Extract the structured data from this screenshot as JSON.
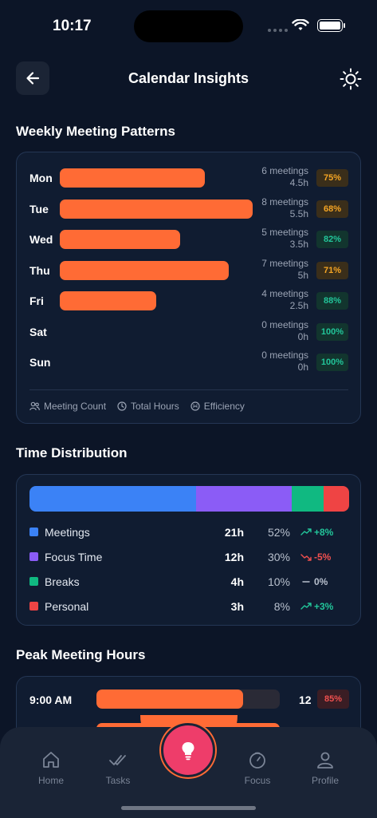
{
  "status": {
    "time": "10:17"
  },
  "header": {
    "title": "Calendar Insights"
  },
  "weekly": {
    "title": "Weekly Meeting Patterns",
    "days": [
      {
        "day": "Mon",
        "meetings": "6 meetings",
        "hours": "4.5h",
        "efficiency": "75%",
        "bar_fraction": 0.75,
        "tone": "amber"
      },
      {
        "day": "Tue",
        "meetings": "8 meetings",
        "hours": "5.5h",
        "efficiency": "68%",
        "bar_fraction": 1.0,
        "tone": "amber"
      },
      {
        "day": "Wed",
        "meetings": "5 meetings",
        "hours": "3.5h",
        "efficiency": "82%",
        "bar_fraction": 0.625,
        "tone": "green"
      },
      {
        "day": "Thu",
        "meetings": "7 meetings",
        "hours": "5h",
        "efficiency": "71%",
        "bar_fraction": 0.875,
        "tone": "amber"
      },
      {
        "day": "Fri",
        "meetings": "4 meetings",
        "hours": "2.5h",
        "efficiency": "88%",
        "bar_fraction": 0.5,
        "tone": "green"
      },
      {
        "day": "Sat",
        "meetings": "0 meetings",
        "hours": "0h",
        "efficiency": "100%",
        "bar_fraction": 0,
        "tone": "green"
      },
      {
        "day": "Sun",
        "meetings": "0 meetings",
        "hours": "0h",
        "efficiency": "100%",
        "bar_fraction": 0,
        "tone": "green"
      }
    ],
    "legend": {
      "count": "Meeting Count",
      "hours": "Total Hours",
      "efficiency": "Efficiency"
    }
  },
  "distribution": {
    "title": "Time Distribution",
    "items": [
      {
        "name": "Meetings",
        "hours": "21h",
        "percent": "52%",
        "share": 52,
        "trend": "+8%",
        "trend_dir": "up",
        "color": "#3b82f6"
      },
      {
        "name": "Focus Time",
        "hours": "12h",
        "percent": "30%",
        "share": 30,
        "trend": "-5%",
        "trend_dir": "down",
        "color": "#8b5cf6"
      },
      {
        "name": "Breaks",
        "hours": "4h",
        "percent": "10%",
        "share": 10,
        "trend": "0%",
        "trend_dir": "flat",
        "color": "#10b981"
      },
      {
        "name": "Personal",
        "hours": "3h",
        "percent": "8%",
        "share": 8,
        "trend": "+3%",
        "trend_dir": "up",
        "color": "#ef4444"
      }
    ]
  },
  "peak": {
    "title": "Peak Meeting Hours",
    "rows": [
      {
        "time": "9:00 AM",
        "count": "12",
        "percent": "85%",
        "fill": 0.8
      }
    ]
  },
  "tabs": {
    "home": "Home",
    "tasks": "Tasks",
    "focus": "Focus",
    "profile": "Profile"
  },
  "colors": {
    "accent": "#ff6b35",
    "fab": "#ee3d6a",
    "amber": "#f5a524",
    "green": "#22c59a",
    "red": "#f0504f"
  }
}
